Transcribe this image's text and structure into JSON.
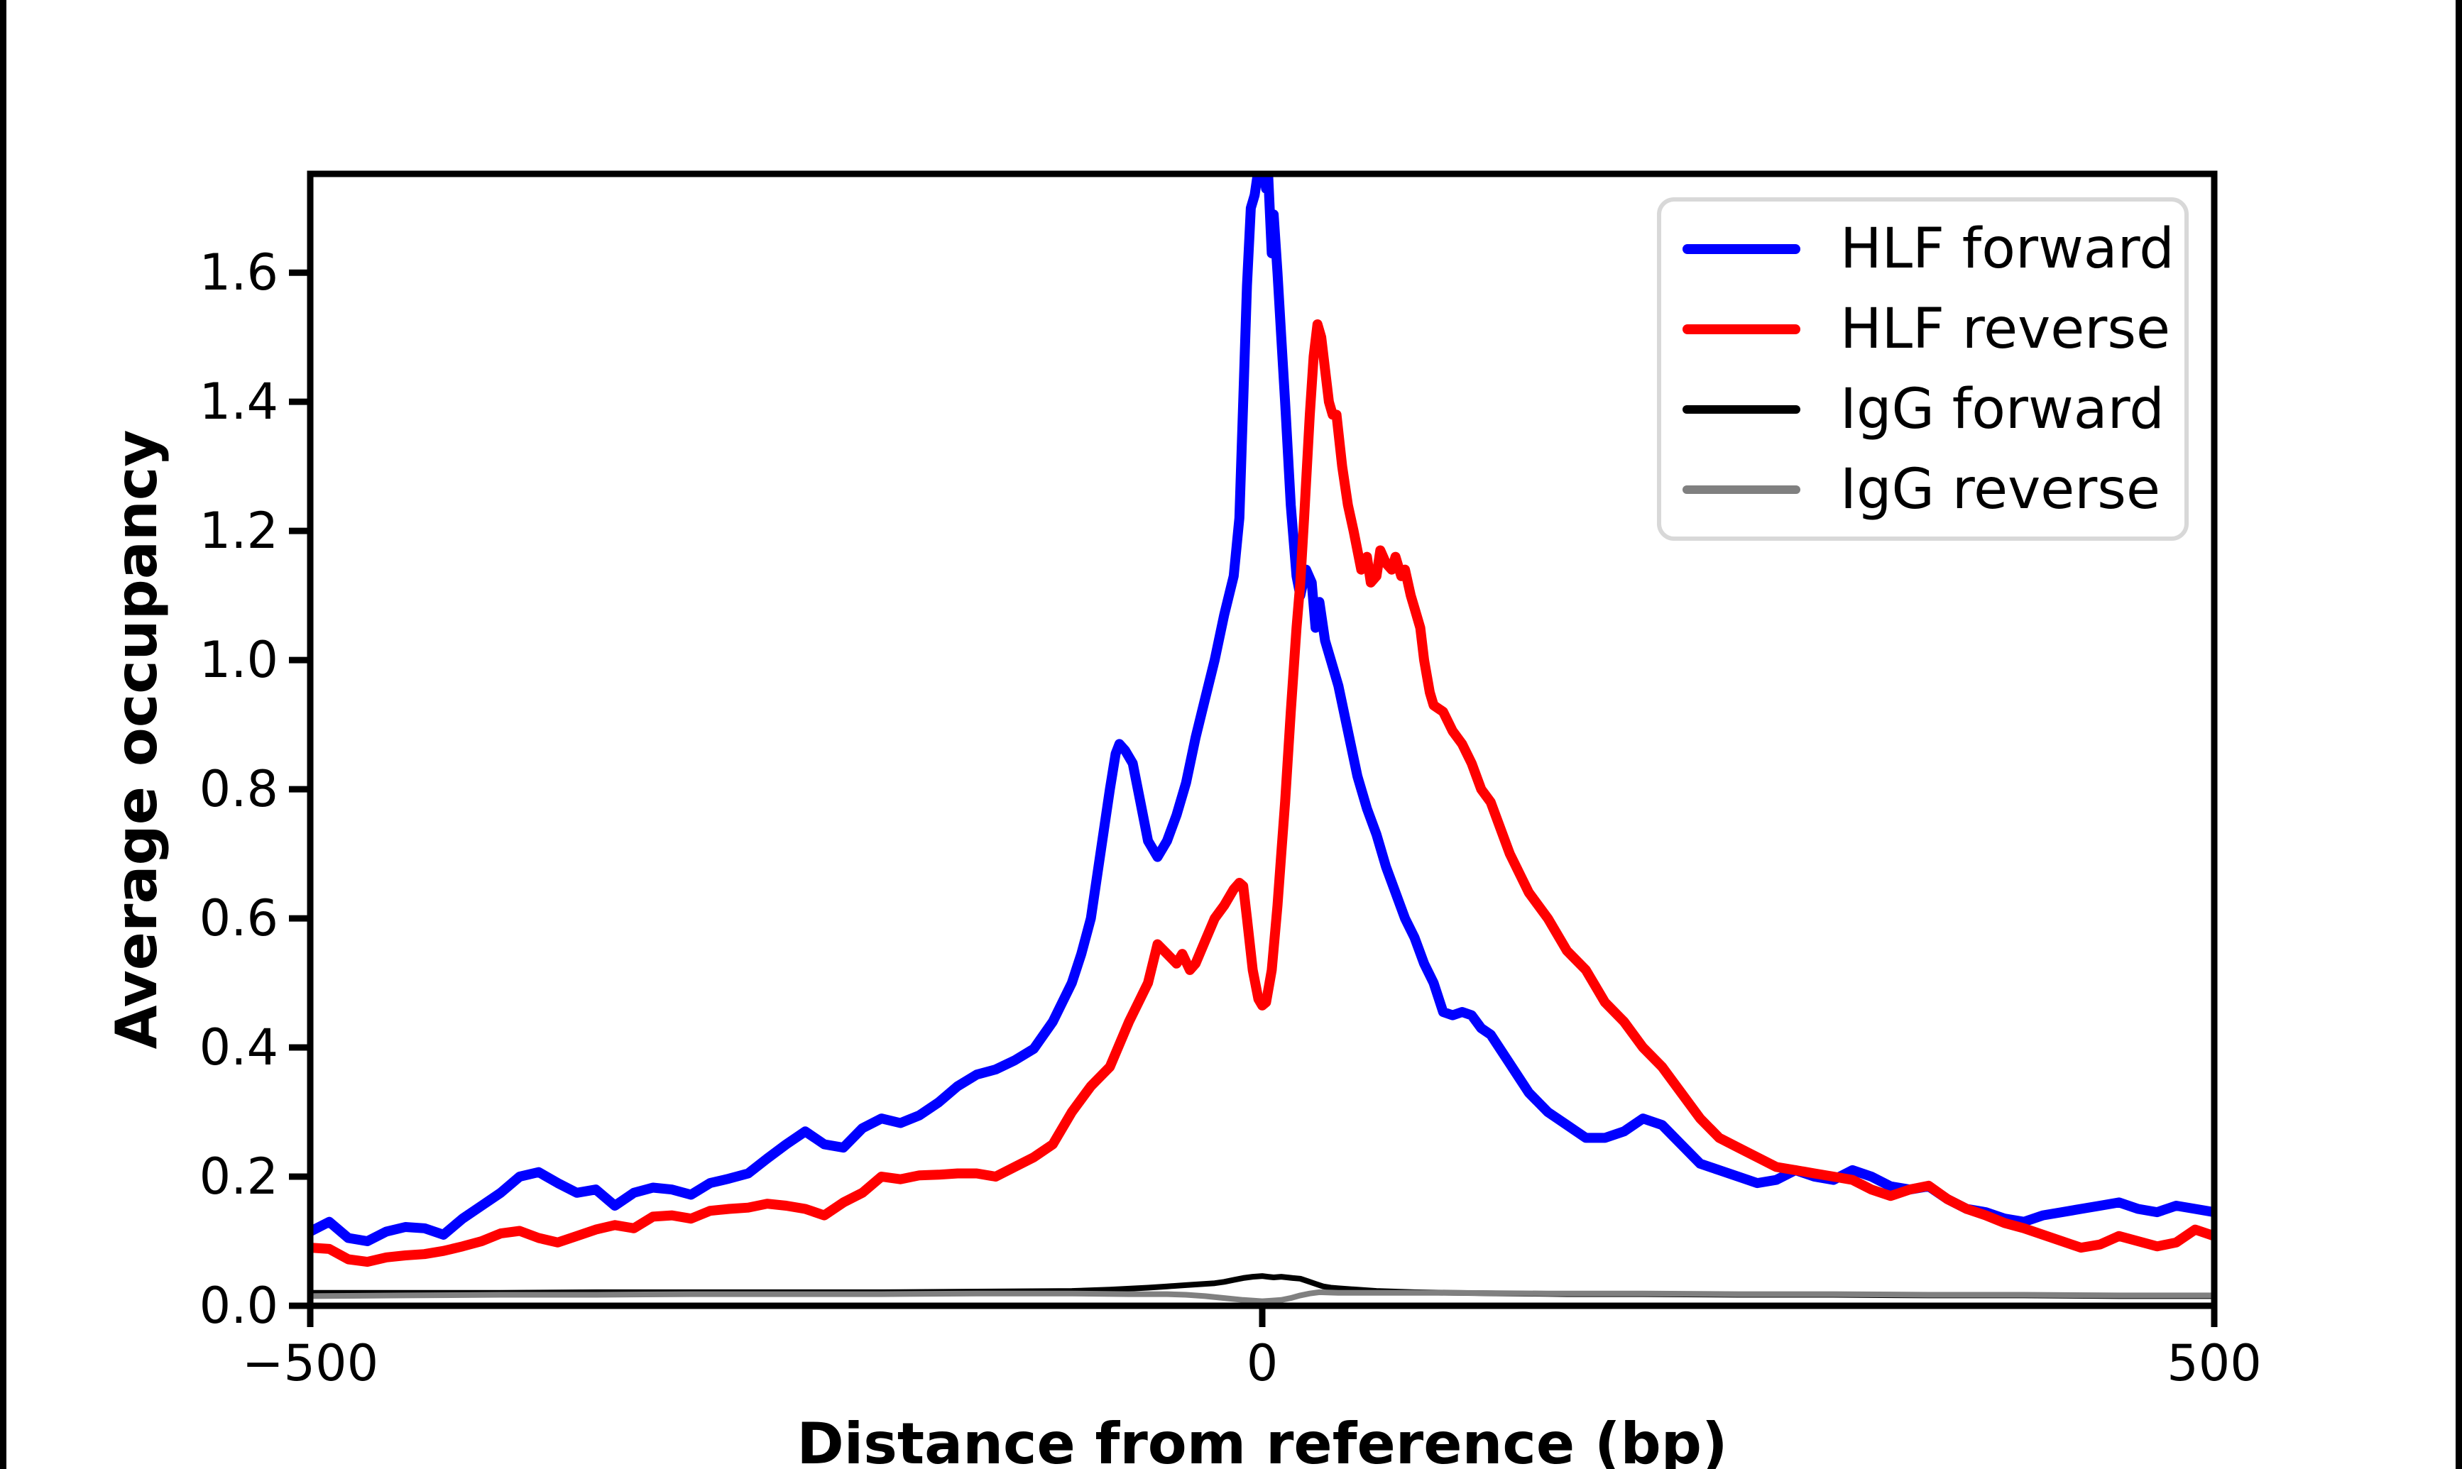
{
  "chart_data": {
    "type": "line",
    "title": "",
    "xlabel": "Distance from reference (bp)",
    "ylabel": "Average occupancy",
    "xlim": [
      -500,
      500
    ],
    "ylim": [
      0,
      1.753
    ],
    "xticks": [
      -500,
      0,
      500
    ],
    "xtick_labels": [
      "−500",
      "0",
      "500"
    ],
    "yticks": [
      0.0,
      0.2,
      0.4,
      0.6,
      0.8,
      1.0,
      1.2,
      1.4,
      1.6
    ],
    "ytick_labels": [
      "0.0",
      "0.2",
      "0.4",
      "0.6",
      "0.8",
      "1.0",
      "1.2",
      "1.4",
      "1.6"
    ],
    "grid": false,
    "axis_color": "#000000",
    "legend": {
      "position": "upper right",
      "border_color": "#d8d8d8",
      "background": "#ffffff"
    },
    "series": [
      {
        "name": "HLF forward",
        "color": "#0000ff",
        "line_width": 14,
        "x": [
          -500,
          -490,
          -480,
          -470,
          -460,
          -450,
          -440,
          -430,
          -420,
          -410,
          -400,
          -390,
          -380,
          -370,
          -360,
          -350,
          -340,
          -330,
          -320,
          -310,
          -300,
          -290,
          -280,
          -270,
          -260,
          -250,
          -240,
          -230,
          -220,
          -210,
          -200,
          -190,
          -180,
          -170,
          -160,
          -150,
          -140,
          -130,
          -120,
          -110,
          -100,
          -95,
          -90,
          -85,
          -80,
          -77,
          -75,
          -72,
          -68,
          -64,
          -60,
          -55,
          -50,
          -45,
          -40,
          -35,
          -30,
          -25,
          -20,
          -15,
          -12,
          -10,
          -8,
          -6,
          -4,
          -2,
          0,
          2,
          3,
          5,
          6,
          8,
          10,
          12,
          15,
          18,
          20,
          23,
          26,
          28,
          30,
          33,
          36,
          40,
          45,
          50,
          55,
          60,
          65,
          70,
          75,
          80,
          85,
          90,
          95,
          100,
          105,
          110,
          115,
          120,
          130,
          140,
          150,
          160,
          170,
          180,
          190,
          200,
          210,
          220,
          230,
          240,
          250,
          260,
          270,
          280,
          290,
          300,
          310,
          320,
          330,
          340,
          350,
          360,
          370,
          380,
          390,
          400,
          410,
          420,
          430,
          440,
          450,
          460,
          470,
          480,
          490,
          500
        ],
        "y": [
          0.115,
          0.13,
          0.105,
          0.1,
          0.115,
          0.122,
          0.12,
          0.11,
          0.135,
          0.155,
          0.175,
          0.2,
          0.207,
          0.19,
          0.175,
          0.18,
          0.155,
          0.175,
          0.183,
          0.18,
          0.172,
          0.19,
          0.197,
          0.205,
          0.228,
          0.25,
          0.27,
          0.25,
          0.245,
          0.275,
          0.29,
          0.283,
          0.295,
          0.315,
          0.34,
          0.358,
          0.366,
          0.38,
          0.398,
          0.44,
          0.5,
          0.545,
          0.6,
          0.7,
          0.8,
          0.855,
          0.87,
          0.86,
          0.84,
          0.78,
          0.72,
          0.695,
          0.72,
          0.76,
          0.81,
          0.88,
          0.94,
          1.0,
          1.07,
          1.13,
          1.22,
          1.4,
          1.58,
          1.7,
          1.72,
          1.76,
          1.77,
          1.73,
          1.76,
          1.63,
          1.69,
          1.6,
          1.5,
          1.4,
          1.24,
          1.13,
          1.1,
          1.14,
          1.12,
          1.05,
          1.09,
          1.03,
          1.0,
          0.96,
          0.89,
          0.82,
          0.77,
          0.73,
          0.68,
          0.64,
          0.6,
          0.57,
          0.53,
          0.5,
          0.455,
          0.45,
          0.455,
          0.45,
          0.43,
          0.42,
          0.375,
          0.33,
          0.3,
          0.28,
          0.26,
          0.26,
          0.27,
          0.29,
          0.28,
          0.25,
          0.22,
          0.21,
          0.2,
          0.19,
          0.195,
          0.21,
          0.2,
          0.195,
          0.21,
          0.2,
          0.185,
          0.18,
          0.185,
          0.165,
          0.15,
          0.145,
          0.135,
          0.13,
          0.14,
          0.145,
          0.15,
          0.155,
          0.16,
          0.15,
          0.145,
          0.155,
          0.15,
          0.145
        ]
      },
      {
        "name": "HLF reverse",
        "color": "#ff0000",
        "line_width": 14,
        "x": [
          -500,
          -490,
          -480,
          -470,
          -460,
          -450,
          -440,
          -430,
          -420,
          -410,
          -400,
          -390,
          -380,
          -370,
          -360,
          -350,
          -340,
          -330,
          -320,
          -310,
          -300,
          -290,
          -280,
          -270,
          -260,
          -250,
          -240,
          -230,
          -220,
          -210,
          -200,
          -190,
          -180,
          -170,
          -160,
          -150,
          -140,
          -130,
          -120,
          -110,
          -100,
          -90,
          -80,
          -70,
          -65,
          -60,
          -55,
          -50,
          -45,
          -42,
          -38,
          -35,
          -30,
          -25,
          -20,
          -15,
          -12,
          -10,
          -8,
          -5,
          -2,
          0,
          2,
          5,
          8,
          10,
          12,
          15,
          18,
          20,
          22,
          25,
          27,
          29,
          31,
          33,
          35,
          37,
          39,
          42,
          45,
          48,
          50,
          52,
          55,
          57,
          60,
          62,
          65,
          68,
          70,
          73,
          75,
          78,
          80,
          83,
          85,
          88,
          90,
          95,
          100,
          105,
          110,
          115,
          120,
          130,
          140,
          150,
          160,
          170,
          180,
          190,
          200,
          210,
          220,
          230,
          240,
          250,
          260,
          270,
          280,
          290,
          300,
          310,
          320,
          330,
          340,
          350,
          360,
          370,
          380,
          390,
          400,
          410,
          420,
          430,
          440,
          450,
          460,
          470,
          480,
          490,
          500
        ],
        "y": [
          0.09,
          0.088,
          0.072,
          0.068,
          0.075,
          0.078,
          0.08,
          0.085,
          0.092,
          0.1,
          0.112,
          0.116,
          0.105,
          0.098,
          0.108,
          0.118,
          0.125,
          0.12,
          0.138,
          0.14,
          0.135,
          0.147,
          0.15,
          0.152,
          0.158,
          0.155,
          0.15,
          0.14,
          0.16,
          0.175,
          0.2,
          0.196,
          0.202,
          0.203,
          0.205,
          0.205,
          0.2,
          0.215,
          0.23,
          0.25,
          0.3,
          0.34,
          0.37,
          0.44,
          0.47,
          0.5,
          0.56,
          0.545,
          0.53,
          0.545,
          0.52,
          0.53,
          0.565,
          0.6,
          0.62,
          0.645,
          0.655,
          0.65,
          0.6,
          0.52,
          0.475,
          0.465,
          0.47,
          0.52,
          0.62,
          0.7,
          0.78,
          0.92,
          1.05,
          1.12,
          1.22,
          1.38,
          1.47,
          1.52,
          1.5,
          1.45,
          1.4,
          1.38,
          1.38,
          1.3,
          1.24,
          1.2,
          1.17,
          1.14,
          1.16,
          1.12,
          1.13,
          1.17,
          1.15,
          1.14,
          1.16,
          1.13,
          1.14,
          1.1,
          1.08,
          1.05,
          1.0,
          0.95,
          0.93,
          0.92,
          0.89,
          0.87,
          0.84,
          0.8,
          0.78,
          0.7,
          0.64,
          0.6,
          0.55,
          0.52,
          0.47,
          0.44,
          0.4,
          0.37,
          0.33,
          0.29,
          0.26,
          0.245,
          0.23,
          0.215,
          0.21,
          0.205,
          0.2,
          0.195,
          0.18,
          0.17,
          0.18,
          0.186,
          0.165,
          0.15,
          0.14,
          0.128,
          0.12,
          0.11,
          0.1,
          0.09,
          0.095,
          0.108,
          0.1,
          0.092,
          0.098,
          0.118,
          0.108
        ]
      },
      {
        "name": "IgG forward",
        "color": "#000000",
        "line_width": 8,
        "x": [
          -500,
          -450,
          -400,
          -350,
          -300,
          -250,
          -200,
          -150,
          -100,
          -80,
          -60,
          -50,
          -40,
          -30,
          -25,
          -20,
          -15,
          -10,
          -5,
          0,
          3,
          6,
          10,
          13,
          16,
          20,
          24,
          28,
          32,
          36,
          40,
          50,
          60,
          80,
          100,
          130,
          160,
          200,
          250,
          300,
          350,
          400,
          450,
          500
        ],
        "y": [
          0.02,
          0.02,
          0.02,
          0.021,
          0.021,
          0.021,
          0.021,
          0.022,
          0.023,
          0.025,
          0.028,
          0.03,
          0.032,
          0.034,
          0.035,
          0.037,
          0.04,
          0.043,
          0.045,
          0.046,
          0.045,
          0.044,
          0.045,
          0.044,
          0.043,
          0.042,
          0.038,
          0.034,
          0.03,
          0.028,
          0.027,
          0.025,
          0.023,
          0.021,
          0.02,
          0.019,
          0.018,
          0.018,
          0.017,
          0.017,
          0.016,
          0.016,
          0.015,
          0.015
        ]
      },
      {
        "name": "IgG reverse",
        "color": "#808080",
        "line_width": 8,
        "x": [
          -500,
          -450,
          -400,
          -350,
          -300,
          -250,
          -200,
          -150,
          -100,
          -70,
          -50,
          -40,
          -30,
          -20,
          -10,
          0,
          5,
          10,
          15,
          20,
          25,
          30,
          40,
          60,
          100,
          150,
          200,
          250,
          300,
          350,
          400,
          450,
          500
        ],
        "y": [
          0.015,
          0.016,
          0.017,
          0.017,
          0.018,
          0.018,
          0.018,
          0.019,
          0.019,
          0.018,
          0.018,
          0.017,
          0.015,
          0.012,
          0.009,
          0.007,
          0.008,
          0.009,
          0.012,
          0.016,
          0.019,
          0.021,
          0.02,
          0.02,
          0.02,
          0.019,
          0.019,
          0.018,
          0.018,
          0.017,
          0.017,
          0.016,
          0.016
        ]
      }
    ]
  }
}
